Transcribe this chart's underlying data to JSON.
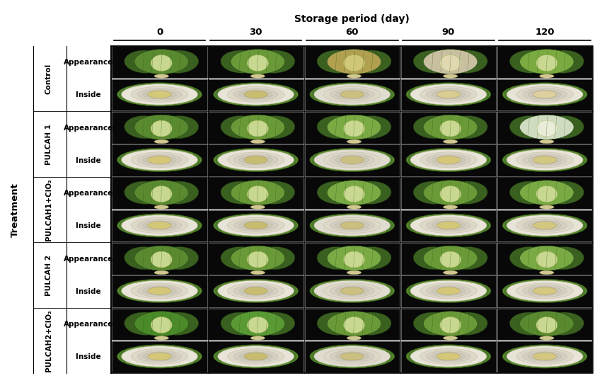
{
  "title": "Storage period (day)",
  "col_labels": [
    "0",
    "30",
    "60",
    "90",
    "120"
  ],
  "row_groups": [
    {
      "label": "Control",
      "sublabels": [
        "Appearance",
        "Inside"
      ]
    },
    {
      "label": "PULCAH 1",
      "sublabels": [
        "Appearance",
        "Inside"
      ]
    },
    {
      "label": "PULCAH1+ClO₂",
      "sublabels": [
        "Appearance",
        "Inside"
      ]
    },
    {
      "label": "PULCAH 2",
      "sublabels": [
        "Appearance",
        "Inside"
      ]
    },
    {
      "label": "PULCAH2+ClO₂",
      "sublabels": [
        "Appearance",
        "Inside"
      ]
    }
  ],
  "y_axis_label": "Treatment",
  "bg_color": "#ffffff",
  "appearance_leaf_colors": [
    [
      "#5a8a30",
      "#6a9a38",
      "#b0a050",
      "#c8c0a0",
      "#7aaa40"
    ],
    [
      "#5a8a30",
      "#6a9a38",
      "#7aaa44",
      "#6a9a38",
      "#d0dcc0"
    ],
    [
      "#5a8a30",
      "#6a9a38",
      "#7aaa44",
      "#6a9a38",
      "#7aaa44"
    ],
    [
      "#5a8a30",
      "#6a9a38",
      "#7aaa44",
      "#6a9a38",
      "#7aaa44"
    ],
    [
      "#4a8a28",
      "#5a9a35",
      "#6a9a38",
      "#6a9a38",
      "#5a8a30"
    ]
  ],
  "appearance_inner_colors": [
    [
      "#c8d890",
      "#c8d890",
      "#d0c878",
      "#e0d8b0",
      "#c8d890"
    ],
    [
      "#c8d890",
      "#c8d890",
      "#c8d890",
      "#c8d890",
      "#e8ecd8"
    ],
    [
      "#c8d890",
      "#c8d890",
      "#c8d890",
      "#c8d890",
      "#c8d890"
    ],
    [
      "#c8d890",
      "#c8d890",
      "#c8d890",
      "#c8d890",
      "#c8d890"
    ],
    [
      "#c8d890",
      "#c8d890",
      "#c8d890",
      "#c8d890",
      "#c8d890"
    ]
  ],
  "inside_outer_colors": [
    [
      "#e8e4d8",
      "#e8e4d8",
      "#e0dcd0",
      "#e8e4d8",
      "#e8e4d8"
    ],
    [
      "#e8e4d8",
      "#e8e4d8",
      "#e0dcd0",
      "#e8e4d8",
      "#e8e4d8"
    ],
    [
      "#e8e4d8",
      "#e8e4d8",
      "#e0dcd0",
      "#e8e4d8",
      "#e8e4d8"
    ],
    [
      "#e8e4d8",
      "#e8e4d8",
      "#e0dcd0",
      "#e8e4d8",
      "#e8e4d8"
    ],
    [
      "#e8e4d8",
      "#e8e4d8",
      "#e0dcd0",
      "#e8e4d8",
      "#e8e4d8"
    ]
  ],
  "inside_core_colors": [
    [
      "#d4c878",
      "#c8bc70",
      "#ccc080",
      "#d8cc90",
      "#dcd0a0"
    ],
    [
      "#d4c878",
      "#c8bc70",
      "#ccc080",
      "#d4c878",
      "#d4c880"
    ],
    [
      "#d4c878",
      "#c8bc70",
      "#ccc080",
      "#d4c878",
      "#d4c880"
    ],
    [
      "#d4c878",
      "#c8bc70",
      "#ccc080",
      "#d4c878",
      "#d4c880"
    ],
    [
      "#d4c878",
      "#c8bc70",
      "#ccc080",
      "#d4c878",
      "#d4c880"
    ]
  ],
  "line_color": "#000000",
  "label_fontsize": 7.5,
  "title_fontsize": 10,
  "col_label_fontsize": 9.5,
  "group_label_fontsize": 7.5
}
